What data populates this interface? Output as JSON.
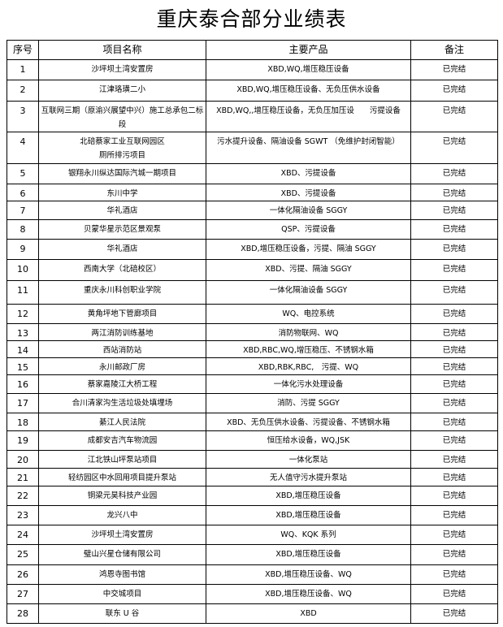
{
  "title": "重庆泰合部分业绩表",
  "headers": [
    "序号",
    "项目名称",
    "主要产品",
    "备注"
  ],
  "rows": [
    {
      "no": "1",
      "name": "沙坪坝土湾安置房",
      "product": "XBD,WQ,增压稳压设备",
      "note": "已完结"
    },
    {
      "no": "2",
      "name": "江津珞璜二小",
      "product": "XBD,WQ,增压稳压设备、无负压供水设备",
      "note": "已完结"
    },
    {
      "no": "3",
      "name": "互联网三期（原渝兴展望中兴）施工总承包二标段",
      "product": "XBD,WQ,,增压稳压设备，无负压加压设　　污提设备",
      "note": "已完结"
    },
    {
      "no": "4",
      "name": "北碚蔡家工业互联网园区\n厕所排污项目",
      "product": "污水提升设备、隔油设备 SGWT （免维护封闭智能）",
      "note": "已完结"
    },
    {
      "no": "5",
      "name": "银翔永川纵达国际汽城一期项目",
      "product": "XBD、污提设备",
      "note": "已完结"
    },
    {
      "no": "6",
      "name": "东川中学",
      "product": "XBD、污提设备",
      "note": "已完结"
    },
    {
      "no": "7",
      "name": "华礼酒店",
      "product": "一体化隔油设备 SGGY",
      "note": "已完结"
    },
    {
      "no": "8",
      "name": "贝蒙华星示范区景观泵",
      "product": "QSP、污提设备",
      "note": "已完结"
    },
    {
      "no": "9",
      "name": "华礼酒店",
      "product": "XBD,增压稳压设备，污提、隔油 SGGY",
      "note": "已完结"
    },
    {
      "no": "10",
      "name": "西南大学（北碚校区）",
      "product": "XBD、污提、隔油 SGGY",
      "note": "已完结"
    },
    {
      "no": "11",
      "name": "重庆永川科创职业学院",
      "product": "一体化隔油设备 SGGY",
      "note": "已完结"
    },
    {
      "no": "12",
      "name": "黄角坪地下管廊项目",
      "product": "WQ、电控系统",
      "note": "已完结"
    },
    {
      "no": "13",
      "name": "两江消防训练基地",
      "product": "消防物联网、WQ",
      "note": "已完结"
    },
    {
      "no": "14",
      "name": "西站消防站",
      "product": "XBD,RBC,WQ,增压稳压、不锈钢水箱",
      "note": "已完结"
    },
    {
      "no": "15",
      "name": "永川邮政厂房",
      "product": "XBD,RBK,RBC,　污提、WQ",
      "note": "已完结"
    },
    {
      "no": "16",
      "name": "蔡家嘉陵江大桥工程",
      "product": "一体化污水处理设备",
      "note": "已完结"
    },
    {
      "no": "17",
      "name": "合川清家沟生活垃圾处填埋场",
      "product": "消防、污提 SGGY",
      "note": "已完结"
    },
    {
      "no": "18",
      "name": "綦江人民法院",
      "product": "XBD、无负压供水设备、污提设备、不锈钢水箱",
      "note": "已完结"
    },
    {
      "no": "19",
      "name": "成都安吉汽车物流园",
      "product": "恒压给水设备，WQ,JSK",
      "note": "已完结"
    },
    {
      "no": "20",
      "name": "江北铁山坪泵站项目",
      "product": "一体化泵站",
      "note": "已完结"
    },
    {
      "no": "21",
      "name": "轻纺园区中水回用项目提升泵站",
      "product": "无人值守污水提升泵站",
      "note": "已完结"
    },
    {
      "no": "22",
      "name": "铜梁元昊科技产业园",
      "product": "XBD,增压稳压设备",
      "note": "已完结"
    },
    {
      "no": "23",
      "name": "龙兴八中",
      "product": "XBD,增压稳压设备",
      "note": "已完结"
    },
    {
      "no": "24",
      "name": "沙坪坝土湾安置房",
      "product": "WQ、KQK 系列",
      "note": "已完结"
    },
    {
      "no": "25",
      "name": "璧山兴星仓储有限公司",
      "product": "XBD,增压稳压设备",
      "note": "已完结"
    },
    {
      "no": "26",
      "name": "鸿恩寺图书馆",
      "product": "XBD,增压稳压设备、WQ",
      "note": "已完结"
    },
    {
      "no": "27",
      "name": "中交城项目",
      "product": "XBD,增压稳压设备、WQ",
      "note": "已完结"
    },
    {
      "no": "28",
      "name": "联东 U 谷",
      "product": "XBD",
      "note": "已完结"
    }
  ]
}
